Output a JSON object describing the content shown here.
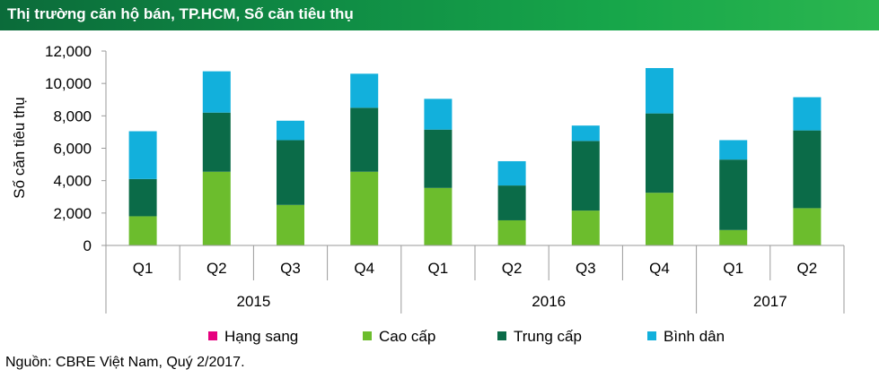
{
  "header": {
    "title": "Thị trường căn hộ bán, TP.HCM, Số căn tiêu thụ"
  },
  "chart_data": {
    "type": "bar",
    "stacked": true,
    "ylabel": "Số căn tiêu thụ",
    "ylim": [
      0,
      12000
    ],
    "yticks": [
      0,
      2000,
      4000,
      6000,
      8000,
      10000,
      12000
    ],
    "ytick_labels": [
      "0",
      "2,000",
      "4,000",
      "6,000",
      "8,000",
      "10,000",
      "12,000"
    ],
    "categories": [
      "Q1",
      "Q2",
      "Q3",
      "Q4",
      "Q1",
      "Q2",
      "Q3",
      "Q4",
      "Q1",
      "Q2"
    ],
    "groups": [
      {
        "label": "2015",
        "count": 4
      },
      {
        "label": "2016",
        "count": 4
      },
      {
        "label": "2017",
        "count": 2
      }
    ],
    "series": [
      {
        "name": "Hạng sang",
        "color": "#e6007e",
        "values": [
          0,
          0,
          0,
          0,
          0,
          0,
          0,
          0,
          0,
          0
        ]
      },
      {
        "name": "Cao cấp",
        "color": "#6cbd2d",
        "values": [
          1800,
          4550,
          2500,
          4550,
          3550,
          1550,
          2150,
          3250,
          950,
          2300
        ]
      },
      {
        "name": "Trung cấp",
        "color": "#0b6b48",
        "values": [
          2300,
          3650,
          4000,
          3950,
          3600,
          2150,
          4300,
          4900,
          4350,
          4800
        ]
      },
      {
        "name": "Bình dân",
        "color": "#12b0dc",
        "values": [
          2950,
          2550,
          1200,
          2100,
          1900,
          1500,
          950,
          2800,
          1200,
          2050
        ]
      }
    ]
  },
  "footer": {
    "source": "Nguồn: CBRE Việt Nam, Quý 2/2017."
  }
}
